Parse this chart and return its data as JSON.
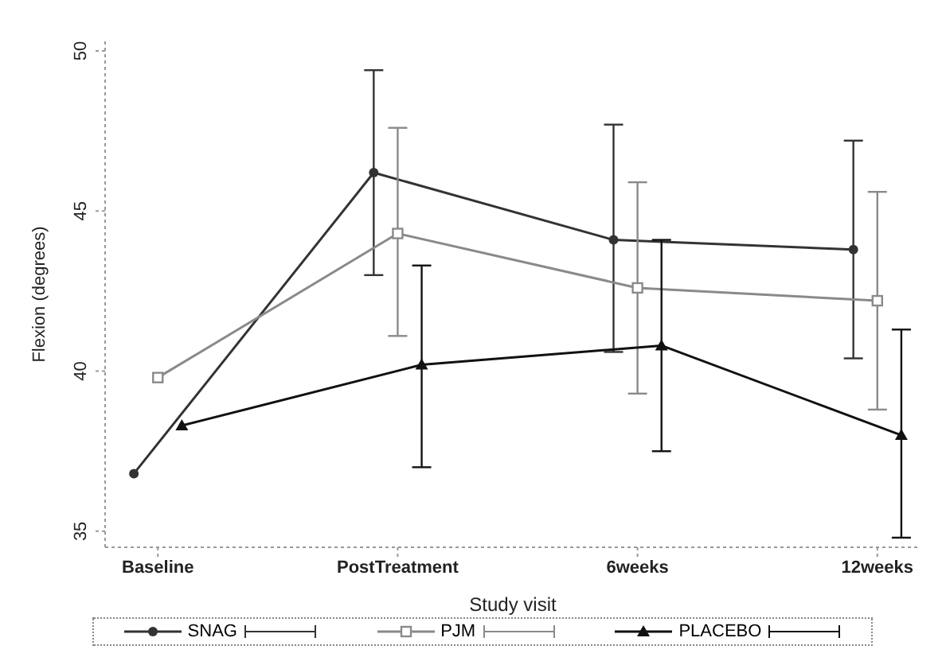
{
  "chart_data": {
    "type": "line",
    "xlabel": "Study visit",
    "ylabel": "Flexion (degrees)",
    "categories": [
      "Baseline",
      "PostTreatment",
      "6weeks",
      "12weeks"
    ],
    "ylim": [
      34.5,
      50.3
    ],
    "yticks": [
      35,
      40,
      45,
      50
    ],
    "grid": false,
    "legend": "bottom",
    "series": [
      {
        "name": "SNAG",
        "color": "#333333",
        "marker": "circle",
        "values": [
          36.8,
          46.2,
          44.1,
          43.8
        ],
        "errors": [
          null,
          [
            43.0,
            49.4
          ],
          [
            40.6,
            47.7
          ],
          [
            40.4,
            47.2
          ]
        ]
      },
      {
        "name": "PJM",
        "color": "#8a8a8a",
        "marker": "square",
        "values": [
          39.8,
          44.3,
          42.6,
          42.2
        ],
        "errors": [
          null,
          [
            41.1,
            47.6
          ],
          [
            39.3,
            45.9
          ],
          [
            38.8,
            45.6
          ]
        ]
      },
      {
        "name": "PLACEBO",
        "color": "#111111",
        "marker": "triangle",
        "values": [
          38.3,
          40.2,
          40.8,
          38.0
        ],
        "errors": [
          null,
          [
            37.0,
            43.3
          ],
          [
            37.5,
            44.1
          ],
          [
            34.8,
            41.3
          ]
        ]
      }
    ]
  }
}
